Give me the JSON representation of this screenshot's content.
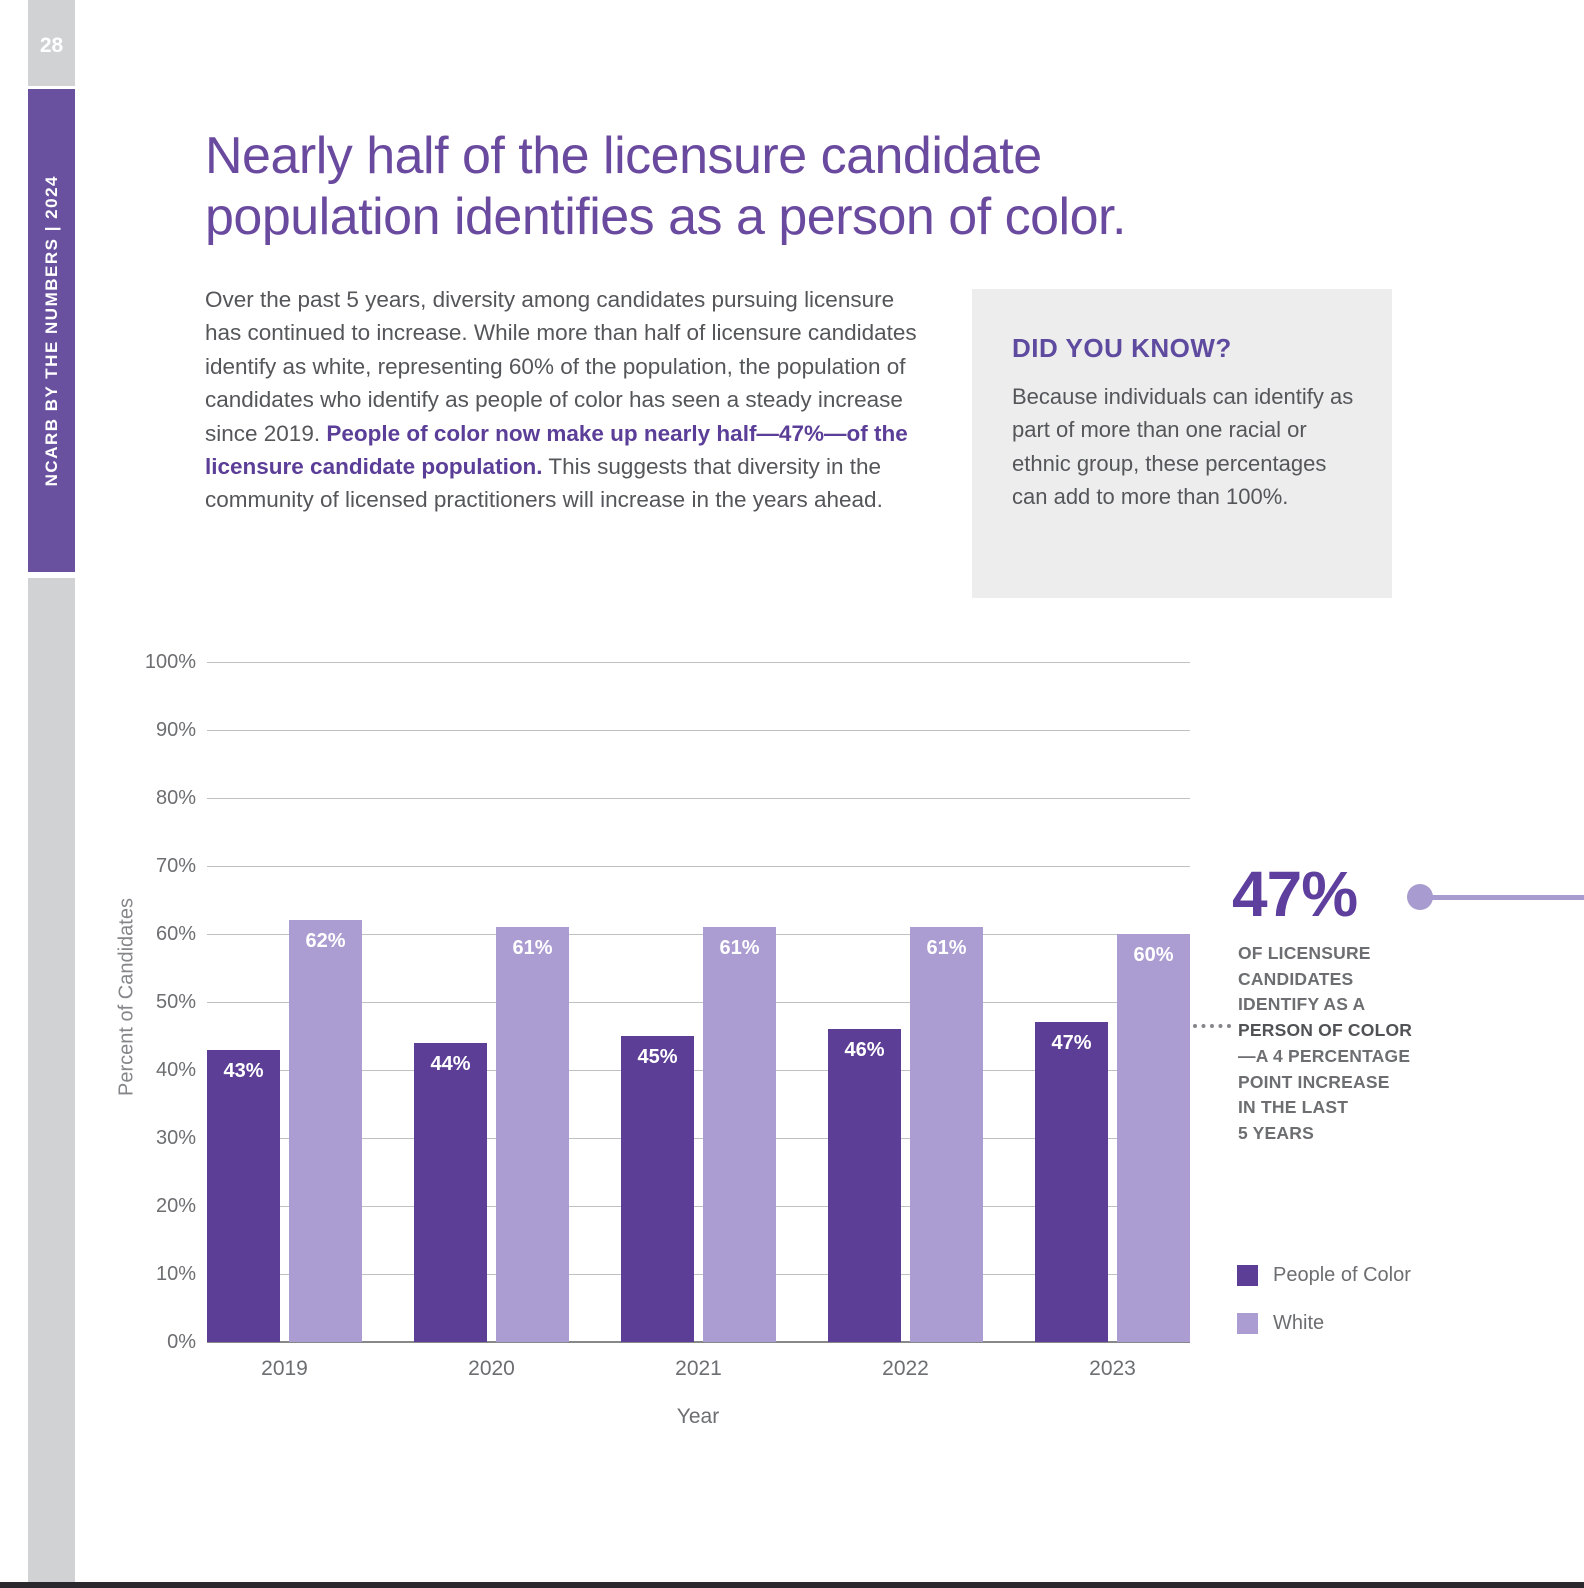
{
  "page": {
    "number": "28",
    "sidebar_text": "NCARB BY THE NUMBERS | 2024"
  },
  "title": {
    "lines": [
      "Nearly half of the licensure candidate",
      "population identifies as a person of color."
    ]
  },
  "intro": {
    "text_before": "Over the past 5 years, diversity among candidates pursuing licensure has continued to increase. While more than half of licensure candidates identify as white, representing 60% of the population, the population of candidates who identify as people of color has seen a steady increase since 2019. ",
    "highlight": "People of color now make up nearly half—47%—of the licensure candidate population.",
    "text_after": " This suggests that diversity in the community of licensed practitioners will increase in the years ahead."
  },
  "did_you_know": {
    "heading": "DID YOU KNOW?",
    "body": "Because individuals can identify as part of more than one racial or ethnic group, these percentages can add to more than 100%."
  },
  "callout": {
    "stat": "47%",
    "lines": [
      "OF LICENSURE",
      "CANDIDATES",
      "IDENTIFY AS A",
      "PERSON OF COLOR",
      "—A 4 PERCENTAGE",
      "POINT INCREASE",
      "IN THE LAST",
      "5 YEARS"
    ],
    "bold_line_index": 3
  },
  "chart_data": {
    "type": "bar",
    "title": "",
    "categories": [
      "2019",
      "2020",
      "2021",
      "2022",
      "2023"
    ],
    "series": [
      {
        "name": "People of Color",
        "color": "#5c3e96",
        "values": [
          43,
          44,
          45,
          46,
          47
        ]
      },
      {
        "name": "White",
        "color": "#ab9cd2",
        "values": [
          62,
          61,
          61,
          61,
          60
        ]
      }
    ],
    "xlabel": "Year",
    "ylabel": "Percent of Candidates",
    "ylim": [
      0,
      100
    ],
    "ytick_step": 10,
    "grid": true,
    "value_label_suffix": "%",
    "legend_position": "right"
  },
  "colors": {
    "accent_purple": "#6a4a9f",
    "highlight_purple": "#5b3e98",
    "bar_dark_purple": "#5c3e96",
    "bar_light_purple": "#ab9cd2",
    "rail_purple": "#6951a0",
    "rail_gray": "#d1d2d4",
    "body_gray": "#55565a",
    "label_gray": "#6d6e71",
    "box_background": "#ededee",
    "callout_line_purple": "#a89bcf",
    "bottom_bar_dark": "#2a2a2e"
  }
}
